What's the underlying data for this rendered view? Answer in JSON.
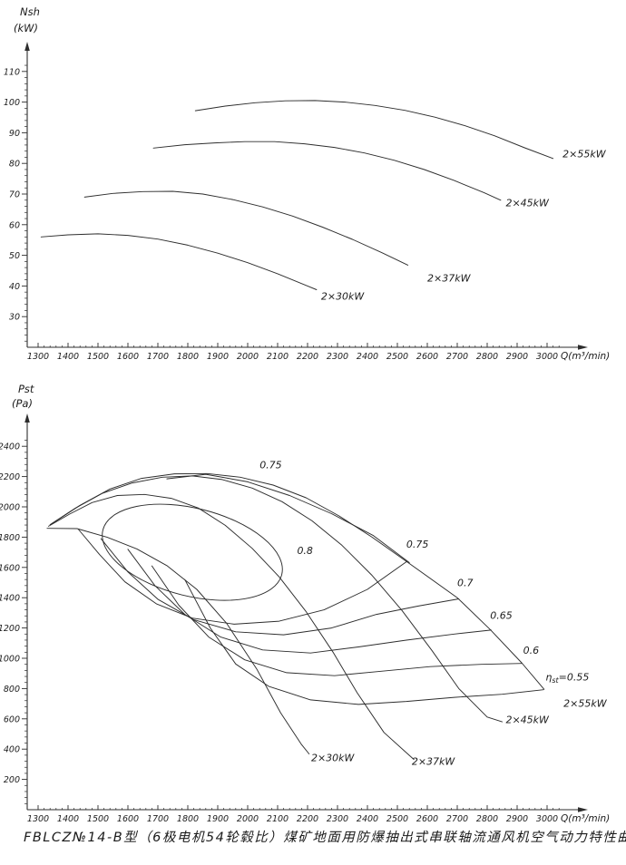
{
  "page": {
    "caption": "FBLCZ№14-B型（6极电机54轮毂比）煤矿地面用防爆抽出式串联轴流通风机空气动力特性曲线"
  },
  "chart_data": [
    {
      "type": "line",
      "id": "shaft-power",
      "y_axis_label": [
        "Nsh",
        "(kW)"
      ],
      "x_axis_label": "Q(m³/min)",
      "x_ticks": [
        1300,
        1400,
        1500,
        1600,
        1700,
        1800,
        1900,
        2000,
        2100,
        2200,
        2300,
        2400,
        2500,
        2600,
        2700,
        2800,
        2900,
        3000
      ],
      "y_ticks": [
        30,
        40,
        50,
        60,
        70,
        80,
        90,
        100,
        110
      ],
      "x_range": [
        1300,
        3050
      ],
      "y_range": [
        20,
        115
      ],
      "grid": "off",
      "series": [
        {
          "name": "2×30kW",
          "points": [
            [
              1310,
              56
            ],
            [
              1400,
              56.7
            ],
            [
              1500,
              57
            ],
            [
              1600,
              56.5
            ],
            [
              1700,
              55.3
            ],
            [
              1800,
              53.3
            ],
            [
              1900,
              50.7
            ],
            [
              2000,
              47.6
            ],
            [
              2100,
              44
            ],
            [
              2200,
              40
            ],
            [
              2230,
              38.8
            ]
          ]
        },
        {
          "name": "2×37kW",
          "points": [
            [
              1455,
              69
            ],
            [
              1550,
              70.2
            ],
            [
              1650,
              70.8
            ],
            [
              1750,
              70.9
            ],
            [
              1850,
              70
            ],
            [
              1950,
              68.2
            ],
            [
              2050,
              65.8
            ],
            [
              2150,
              62.8
            ],
            [
              2250,
              59.2
            ],
            [
              2350,
              55.2
            ],
            [
              2450,
              50.8
            ],
            [
              2535,
              46.8
            ]
          ]
        },
        {
          "name": "2×45kW",
          "points": [
            [
              1685,
              85
            ],
            [
              1790,
              86.1
            ],
            [
              1890,
              86.7
            ],
            [
              1990,
              87.1
            ],
            [
              2090,
              87.1
            ],
            [
              2190,
              86.4
            ],
            [
              2290,
              85.2
            ],
            [
              2390,
              83.4
            ],
            [
              2490,
              81
            ],
            [
              2590,
              78
            ],
            [
              2690,
              74.4
            ],
            [
              2790,
              70.4
            ],
            [
              2845,
              68
            ]
          ]
        },
        {
          "name": "2×55kW",
          "points": [
            [
              1825,
              97.2
            ],
            [
              1925,
              98.7
            ],
            [
              2025,
              99.8
            ],
            [
              2125,
              100.4
            ],
            [
              2225,
              100.5
            ],
            [
              2325,
              100
            ],
            [
              2425,
              98.9
            ],
            [
              2525,
              97.3
            ],
            [
              2625,
              95.1
            ],
            [
              2725,
              92.3
            ],
            [
              2825,
              89
            ],
            [
              2925,
              85.1
            ],
            [
              3020,
              81.6
            ]
          ]
        }
      ],
      "labels": [
        {
          "text": "2×30kW",
          "x": 2245,
          "y": 35.5
        },
        {
          "text": "2×37kW",
          "x": 2600,
          "y": 41.5
        },
        {
          "text": "2×45kW",
          "x": 2862,
          "y": 66
        },
        {
          "text": "2×55kW",
          "x": 3052,
          "y": 82
        }
      ]
    },
    {
      "type": "line",
      "id": "static-pressure",
      "y_axis_label": [
        "Pst",
        "(Pa)"
      ],
      "x_axis_label": "Q(m³/min)",
      "x_ticks": [
        1300,
        1400,
        1500,
        1600,
        1700,
        1800,
        1900,
        2000,
        2100,
        2200,
        2300,
        2400,
        2500,
        2600,
        2700,
        2800,
        2900,
        3000
      ],
      "y_ticks": [
        200,
        400,
        600,
        800,
        1000,
        1200,
        1400,
        1600,
        1800,
        2000,
        2200,
        2400
      ],
      "x_range": [
        1300,
        3050
      ],
      "y_range": [
        0,
        2500
      ],
      "grid": "off",
      "series": [
        {
          "name": "2×30kW",
          "points": [
            [
              1330,
              1858
            ],
            [
              1430,
              1856
            ],
            [
              1530,
              1800
            ],
            [
              1630,
              1722
            ],
            [
              1730,
              1612
            ],
            [
              1830,
              1455
            ],
            [
              1930,
              1230
            ],
            [
              2030,
              930
            ],
            [
              2110,
              640
            ],
            [
              2180,
              430
            ],
            [
              2205,
              368
            ]
          ]
        },
        {
          "name": "2×37kW",
          "points": [
            [
              1335,
              1872
            ],
            [
              1405,
              1952
            ],
            [
              1480,
              2028
            ],
            [
              1565,
              2075
            ],
            [
              1655,
              2082
            ],
            [
              1745,
              2056
            ],
            [
              1835,
              1992
            ],
            [
              1925,
              1878
            ],
            [
              2015,
              1726
            ],
            [
              2105,
              1538
            ],
            [
              2195,
              1308
            ],
            [
              2285,
              1040
            ],
            [
              2365,
              775
            ],
            [
              2455,
              510
            ],
            [
              2555,
              332
            ]
          ]
        },
        {
          "name": "2×45kW",
          "points": [
            [
              1340,
              1882
            ],
            [
              1425,
              1992
            ],
            [
              1515,
              2090
            ],
            [
              1615,
              2158
            ],
            [
              1715,
              2196
            ],
            [
              1815,
              2204
            ],
            [
              1915,
              2180
            ],
            [
              2015,
              2124
            ],
            [
              2115,
              2034
            ],
            [
              2215,
              1908
            ],
            [
              2315,
              1746
            ],
            [
              2415,
              1548
            ],
            [
              2515,
              1316
            ],
            [
              2615,
              1052
            ],
            [
              2705,
              800
            ],
            [
              2800,
              612
            ],
            [
              2850,
              580
            ]
          ]
        },
        {
          "name": "2×55kW",
          "points": [
            [
              1345,
              1888
            ],
            [
              1440,
              2010
            ],
            [
              1540,
              2118
            ],
            [
              1645,
              2188
            ],
            [
              1755,
              2218
            ],
            [
              1865,
              2220
            ],
            [
              1975,
              2196
            ],
            [
              2085,
              2144
            ],
            [
              2195,
              2060
            ],
            [
              2305,
              1940
            ],
            [
              2415,
              1800
            ],
            [
              2530,
              1640
            ],
            [
              2700,
              1400
            ],
            [
              2810,
              1190
            ],
            [
              2915,
              970
            ],
            [
              2990,
              795
            ]
          ]
        },
        {
          "name": "eta-0.75-upper",
          "points": [
            [
              1730,
              2185
            ],
            [
              1860,
              2215
            ],
            [
              2000,
              2165
            ],
            [
              2140,
              2075
            ],
            [
              2280,
              1955
            ],
            [
              2420,
              1810
            ],
            [
              2540,
              1632
            ]
          ]
        },
        {
          "name": "eta-0.75-lower",
          "points": [
            [
              1435,
              1850
            ],
            [
              1505,
              1685
            ],
            [
              1590,
              1505
            ],
            [
              1695,
              1360
            ],
            [
              1815,
              1265
            ],
            [
              1955,
              1225
            ],
            [
              2105,
              1245
            ],
            [
              2255,
              1320
            ],
            [
              2400,
              1455
            ],
            [
              2532,
              1640
            ]
          ]
        },
        {
          "name": "eta-0.7",
          "points": [
            [
              1510,
              1790
            ],
            [
              1600,
              1570
            ],
            [
              1700,
              1390
            ],
            [
              1820,
              1255
            ],
            [
              1960,
              1175
            ],
            [
              2120,
              1155
            ],
            [
              2280,
              1200
            ],
            [
              2430,
              1290
            ],
            [
              2570,
              1345
            ],
            [
              2705,
              1392
            ]
          ]
        },
        {
          "name": "eta-0.65",
          "points": [
            [
              1600,
              1720
            ],
            [
              1690,
              1480
            ],
            [
              1790,
              1290
            ],
            [
              1910,
              1140
            ],
            [
              2050,
              1055
            ],
            [
              2210,
              1035
            ],
            [
              2370,
              1075
            ],
            [
              2530,
              1120
            ],
            [
              2690,
              1160
            ],
            [
              2813,
              1186
            ]
          ]
        },
        {
          "name": "eta-0.6",
          "points": [
            [
              1680,
              1610
            ],
            [
              1770,
              1350
            ],
            [
              1870,
              1140
            ],
            [
              1990,
              990
            ],
            [
              2130,
              905
            ],
            [
              2290,
              885
            ],
            [
              2450,
              915
            ],
            [
              2610,
              945
            ],
            [
              2780,
              960
            ],
            [
              2917,
              966
            ]
          ]
        },
        {
          "name": "eta-0.55",
          "points": [
            [
              1790,
              1520
            ],
            [
              1875,
              1200
            ],
            [
              1960,
              962
            ],
            [
              2070,
              815
            ],
            [
              2210,
              725
            ],
            [
              2370,
              695
            ],
            [
              2530,
              715
            ],
            [
              2690,
              742
            ],
            [
              2850,
              762
            ],
            [
              2988,
              792
            ]
          ]
        }
      ],
      "ellipse": {
        "name": "eta-0.8-loop",
        "cx": 1815,
        "cy": 1700,
        "rx_q": 308,
        "ry_p": 290,
        "rot_deg": 14
      },
      "labels": [
        {
          "text": "0.75",
          "x": 2040,
          "y": 2255
        },
        {
          "text": "0.8",
          "x": 2165,
          "y": 1690
        },
        {
          "text": "0.75",
          "x": 2530,
          "y": 1730
        },
        {
          "text": "0.7",
          "x": 2700,
          "y": 1475
        },
        {
          "text": "0.65",
          "x": 2810,
          "y": 1260
        },
        {
          "text": "0.6",
          "x": 2920,
          "y": 1030
        },
        {
          "lead": "η",
          "sub": "st",
          "tail": "=0.55",
          "x": 2995,
          "y": 852
        },
        {
          "text": "2×55kW",
          "x": 3055,
          "y": 680
        },
        {
          "text": "2×45kW",
          "x": 2862,
          "y": 572
        },
        {
          "text": "2×37kW",
          "x": 2548,
          "y": 295
        },
        {
          "text": "2×30kW",
          "x": 2212,
          "y": 320
        }
      ]
    }
  ]
}
